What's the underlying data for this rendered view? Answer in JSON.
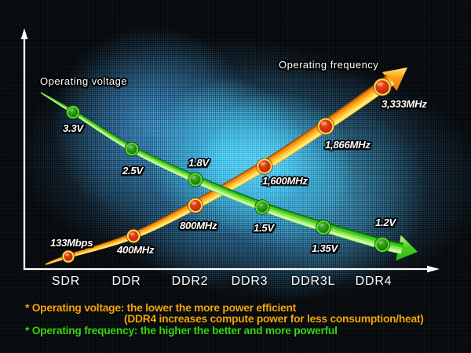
{
  "chart_data": {
    "type": "line",
    "categories": [
      "SDR",
      "DDR",
      "DDR2",
      "DDR3",
      "DDR3L",
      "DDR4"
    ],
    "series": [
      {
        "name": "Operating voltage",
        "color": "#3ecb1e",
        "values": [
          3.3,
          2.5,
          1.8,
          1.5,
          1.35,
          1.2
        ],
        "labels": [
          "3.3V",
          "2.5V",
          "1.8V",
          "1.5V",
          "1.35V",
          "1.2V"
        ]
      },
      {
        "name": "Operating frequency",
        "color": "#ff9416",
        "values": [
          133,
          400,
          800,
          1600,
          1866,
          3333
        ],
        "labels": [
          "133Mbps",
          "400MHz",
          "800MHz",
          "1,600MHz",
          "1,866MHz",
          "3,333MHz"
        ]
      }
    ],
    "legend_position": "inline",
    "grid": false
  },
  "footnotes": [
    {
      "text": "* Operating voltage: the lower the more power efficient",
      "color": "#f2a50c"
    },
    {
      "text": "(DDR4 increases compute power for less consumption/heat)",
      "color": "#f2a50c"
    },
    {
      "text": "* Operating frequency: the higher the better and more powerful",
      "color": "#36d60e"
    }
  ]
}
